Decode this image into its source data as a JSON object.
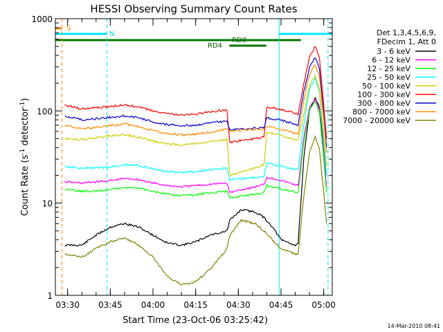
{
  "chart_data": {
    "type": "line",
    "title": "HESSI Observing Summary Count Rates",
    "xlabel": "Start Time (23-Oct-06 03:25:42)",
    "ylabel_main": "Count Rate (s",
    "ylabel_sup1": "-1",
    "ylabel_mid": " detector",
    "ylabel_sup2": "-1",
    "ylabel_end": ")",
    "y_scale": "log",
    "ylim": [
      1,
      1000
    ],
    "xlim": [
      "03:25:42",
      "05:03:00"
    ],
    "x_ticks": [
      "03:30",
      "03:45",
      "04:00",
      "04:15",
      "04:30",
      "04:45",
      "05:00"
    ],
    "y_ticks": [
      "1",
      "10",
      "100",
      "1000"
    ],
    "footer_timestamp": "14-Mar-2010 08:41",
    "legend_header": [
      "Det 1,3,4,5,6,9,",
      "FDecim 1, Att 0"
    ],
    "legend_placement": "right",
    "flag_labels": {
      "saa": "S",
      "night": "N",
      "rd0": "RD0",
      "rd4": "RD4"
    },
    "flag_intervals": {
      "saa": {
        "color": "#ff8000",
        "ranges": [
          [
            "03:25:42",
            "03:28:00"
          ]
        ]
      },
      "night": {
        "color": "#00e5ff",
        "ranges": [
          [
            "03:25:42",
            "03:43:50"
          ],
          [
            "04:44:20",
            "05:03:00"
          ]
        ]
      },
      "rd0": {
        "color": "#007700",
        "ranges": [
          [
            "03:25:42",
            "04:52:00"
          ]
        ]
      },
      "rd4": {
        "color": "#007700",
        "ranges": [
          [
            "04:26:50",
            "04:39:50"
          ]
        ]
      }
    },
    "vertical_markers": [
      {
        "time": "03:25:42",
        "color": "#00e5ff",
        "style": "solid"
      },
      {
        "time": "03:28:00",
        "color": "#ff8000",
        "style": "dashed"
      },
      {
        "time": "03:43:50",
        "color": "#00e5ff",
        "style": "dashed"
      },
      {
        "time": "04:44:20",
        "color": "#00e5ff",
        "style": "solid"
      },
      {
        "time": "05:01:30",
        "color": "#00e5ff",
        "style": "dashed"
      }
    ],
    "series": [
      {
        "name": "3 - 6 keV",
        "color": "#000000",
        "points": [
          [
            "03:29:00",
            "3.5"
          ],
          [
            "03:35:00",
            "3.5"
          ],
          [
            "03:40:00",
            "4.5"
          ],
          [
            "03:45:00",
            "5.5"
          ],
          [
            "03:50:00",
            "6"
          ],
          [
            "03:55:00",
            "5.5"
          ],
          [
            "04:00:00",
            "4.5"
          ],
          [
            "04:05:00",
            "3.7"
          ],
          [
            "04:10:00",
            "3.5"
          ],
          [
            "04:15:00",
            "3.8"
          ],
          [
            "04:20:00",
            "4.5"
          ],
          [
            "04:26:00",
            "5"
          ],
          [
            "04:27:00",
            "6.5"
          ],
          [
            "04:31:00",
            "8.5"
          ],
          [
            "04:36:00",
            "8"
          ],
          [
            "04:39:00",
            "7"
          ],
          [
            "04:42:00",
            "5.5"
          ],
          [
            "04:45:00",
            "4"
          ],
          [
            "04:50:00",
            "3.5"
          ],
          [
            "04:51:00",
            "3.7"
          ],
          [
            "04:53:00",
            "30"
          ],
          [
            "04:55:00",
            "100"
          ],
          [
            "04:57:00",
            "140"
          ],
          [
            "04:58:30",
            "110"
          ],
          [
            "05:00:00",
            "40"
          ],
          [
            "05:01:00",
            "20"
          ]
        ]
      },
      {
        "name": "6 - 12 keV",
        "color": "#ff00ff",
        "points": [
          [
            "03:29:00",
            "17"
          ],
          [
            "03:35:00",
            "16.5"
          ],
          [
            "03:40:00",
            "17"
          ],
          [
            "03:45:00",
            "17.5"
          ],
          [
            "03:50:00",
            "18.5"
          ],
          [
            "03:55:00",
            "18"
          ],
          [
            "04:00:00",
            "16.5"
          ],
          [
            "04:05:00",
            "15.5"
          ],
          [
            "04:10:00",
            "15"
          ],
          [
            "04:15:00",
            "15.5"
          ],
          [
            "04:20:00",
            "16"
          ],
          [
            "04:26:00",
            "16.5"
          ],
          [
            "04:27:00",
            "13"
          ],
          [
            "04:31:00",
            "14"
          ],
          [
            "04:36:00",
            "15"
          ],
          [
            "04:39:00",
            "16"
          ],
          [
            "04:40:00",
            "19"
          ],
          [
            "04:44:00",
            "18"
          ],
          [
            "04:48:00",
            "16.5"
          ],
          [
            "04:51:00",
            "15.5"
          ],
          [
            "04:53:00",
            "50"
          ],
          [
            "04:55:00",
            "110"
          ],
          [
            "04:57:00",
            "135"
          ],
          [
            "04:58:30",
            "100"
          ],
          [
            "05:00:00",
            "35"
          ],
          [
            "05:01:00",
            "15"
          ]
        ]
      },
      {
        "name": "12 - 25 keV",
        "color": "#00ff00",
        "points": [
          [
            "03:29:00",
            "14"
          ],
          [
            "03:35:00",
            "13.5"
          ],
          [
            "03:40:00",
            "13.5"
          ],
          [
            "03:45:00",
            "14"
          ],
          [
            "03:50:00",
            "15"
          ],
          [
            "03:55:00",
            "14.5"
          ],
          [
            "04:00:00",
            "13.5"
          ],
          [
            "04:05:00",
            "12.5"
          ],
          [
            "04:10:00",
            "12"
          ],
          [
            "04:15:00",
            "12.3"
          ],
          [
            "04:20:00",
            "13"
          ],
          [
            "04:26:00",
            "13.5"
          ],
          [
            "04:27:00",
            "11.5"
          ],
          [
            "04:31:00",
            "12"
          ],
          [
            "04:36:00",
            "12.5"
          ],
          [
            "04:39:00",
            "13"
          ],
          [
            "04:40:00",
            "15.5"
          ],
          [
            "04:44:00",
            "14.5"
          ],
          [
            "04:48:00",
            "13.5"
          ],
          [
            "04:51:00",
            "13"
          ],
          [
            "04:53:00",
            "45"
          ],
          [
            "04:55:00",
            "100"
          ],
          [
            "04:57:00",
            "130"
          ],
          [
            "04:58:30",
            "95"
          ],
          [
            "05:00:00",
            "30"
          ],
          [
            "05:01:00",
            "13"
          ]
        ]
      },
      {
        "name": "25 - 50 keV",
        "color": "#00ffff",
        "points": [
          [
            "03:29:00",
            "25"
          ],
          [
            "03:35:00",
            "24"
          ],
          [
            "03:40:00",
            "24"
          ],
          [
            "03:45:00",
            "24.5"
          ],
          [
            "03:50:00",
            "26"
          ],
          [
            "03:55:00",
            "25.5"
          ],
          [
            "04:00:00",
            "23.5"
          ],
          [
            "04:05:00",
            "22"
          ],
          [
            "04:10:00",
            "21.5"
          ],
          [
            "04:15:00",
            "22"
          ],
          [
            "04:20:00",
            "23"
          ],
          [
            "04:26:00",
            "24"
          ],
          [
            "04:27:00",
            "18"
          ],
          [
            "04:31:00",
            "18.5"
          ],
          [
            "04:36:00",
            "19"
          ],
          [
            "04:39:00",
            "19.5"
          ],
          [
            "04:40:00",
            "27"
          ],
          [
            "04:44:00",
            "25.5"
          ],
          [
            "04:48:00",
            "24"
          ],
          [
            "04:51:00",
            "23"
          ],
          [
            "04:53:00",
            "70"
          ],
          [
            "04:55:00",
            "170"
          ],
          [
            "04:57:00",
            "225"
          ],
          [
            "04:58:30",
            "160"
          ],
          [
            "05:00:00",
            "45"
          ],
          [
            "05:01:00",
            "20"
          ]
        ]
      },
      {
        "name": "50 - 100 keV",
        "color": "#cccc00",
        "points": [
          [
            "03:29:00",
            "50"
          ],
          [
            "03:35:00",
            "49"
          ],
          [
            "03:40:00",
            "51"
          ],
          [
            "03:45:00",
            "54"
          ],
          [
            "03:50:00",
            "55"
          ],
          [
            "03:55:00",
            "52"
          ],
          [
            "04:00:00",
            "47"
          ],
          [
            "04:05:00",
            "44"
          ],
          [
            "04:10:00",
            "43"
          ],
          [
            "04:15:00",
            "44"
          ],
          [
            "04:20:00",
            "46"
          ],
          [
            "04:26:00",
            "49"
          ],
          [
            "04:27:00",
            "20"
          ],
          [
            "04:31:00",
            "22"
          ],
          [
            "04:36:00",
            "24"
          ],
          [
            "04:39:00",
            "26"
          ],
          [
            "04:40:00",
            "58"
          ],
          [
            "04:44:00",
            "55"
          ],
          [
            "04:48:00",
            "51"
          ],
          [
            "04:51:00",
            "48"
          ],
          [
            "04:53:00",
            "90"
          ],
          [
            "04:55:00",
            "190"
          ],
          [
            "04:57:00",
            "240"
          ],
          [
            "04:58:30",
            "170"
          ],
          [
            "05:00:00",
            "55"
          ],
          [
            "05:01:00",
            "25"
          ]
        ]
      },
      {
        "name": "100 - 300 keV",
        "color": "#ff0000",
        "points": [
          [
            "03:29:00",
            "115"
          ],
          [
            "03:35:00",
            "105"
          ],
          [
            "03:40:00",
            "108"
          ],
          [
            "03:45:00",
            "112"
          ],
          [
            "03:50:00",
            "116"
          ],
          [
            "03:55:00",
            "110"
          ],
          [
            "04:00:00",
            "100"
          ],
          [
            "04:05:00",
            "93"
          ],
          [
            "04:10:00",
            "90"
          ],
          [
            "04:15:00",
            "92"
          ],
          [
            "04:20:00",
            "98"
          ],
          [
            "04:26:00",
            "103"
          ],
          [
            "04:27:00",
            "45"
          ],
          [
            "04:31:00",
            "48"
          ],
          [
            "04:36:00",
            "50"
          ],
          [
            "04:39:00",
            "52"
          ],
          [
            "04:40:00",
            "110"
          ],
          [
            "04:44:00",
            "105"
          ],
          [
            "04:48:00",
            "98"
          ],
          [
            "04:51:00",
            "92"
          ],
          [
            "04:53:00",
            "200"
          ],
          [
            "04:55:00",
            "380"
          ],
          [
            "04:57:00",
            "500"
          ],
          [
            "04:58:30",
            "380"
          ],
          [
            "05:00:00",
            "120"
          ],
          [
            "05:01:00",
            "50"
          ]
        ]
      },
      {
        "name": "300 - 800 keV",
        "color": "#0000cc",
        "points": [
          [
            "03:29:00",
            "88"
          ],
          [
            "03:35:00",
            "80"
          ],
          [
            "03:40:00",
            "82"
          ],
          [
            "03:45:00",
            "85"
          ],
          [
            "03:50:00",
            "88"
          ],
          [
            "03:55:00",
            "84"
          ],
          [
            "04:00:00",
            "76"
          ],
          [
            "04:05:00",
            "71"
          ],
          [
            "04:10:00",
            "69"
          ],
          [
            "04:15:00",
            "70"
          ],
          [
            "04:20:00",
            "74"
          ],
          [
            "04:26:00",
            "78"
          ],
          [
            "04:27:00",
            "62"
          ],
          [
            "04:31:00",
            "64"
          ],
          [
            "04:36:00",
            "65"
          ],
          [
            "04:39:00",
            "66"
          ],
          [
            "04:40:00",
            "84"
          ],
          [
            "04:44:00",
            "80"
          ],
          [
            "04:48:00",
            "75"
          ],
          [
            "04:51:00",
            "70"
          ],
          [
            "04:53:00",
            "160"
          ],
          [
            "04:55:00",
            "300"
          ],
          [
            "04:57:00",
            "380"
          ],
          [
            "04:58:30",
            "290"
          ],
          [
            "05:00:00",
            "95"
          ],
          [
            "05:01:00",
            "40"
          ]
        ]
      },
      {
        "name": "800 - 7000 keV",
        "color": "#ff8800",
        "points": [
          [
            "03:29:00",
            "70"
          ],
          [
            "03:35:00",
            "64"
          ],
          [
            "03:40:00",
            "66"
          ],
          [
            "03:45:00",
            "69"
          ],
          [
            "03:50:00",
            "72"
          ],
          [
            "03:55:00",
            "68"
          ],
          [
            "04:00:00",
            "61"
          ],
          [
            "04:05:00",
            "57"
          ],
          [
            "04:10:00",
            "55"
          ],
          [
            "04:15:00",
            "56"
          ],
          [
            "04:20:00",
            "59"
          ],
          [
            "04:26:00",
            "63"
          ],
          [
            "04:27:00",
            "60"
          ],
          [
            "04:31:00",
            "62"
          ],
          [
            "04:36:00",
            "63"
          ],
          [
            "04:39:00",
            "64"
          ],
          [
            "04:40:00",
            "68"
          ],
          [
            "04:44:00",
            "64"
          ],
          [
            "04:48:00",
            "60"
          ],
          [
            "04:51:00",
            "56"
          ],
          [
            "04:53:00",
            "130"
          ],
          [
            "04:55:00",
            "250"
          ],
          [
            "04:57:00",
            "320"
          ],
          [
            "04:58:30",
            "240"
          ],
          [
            "05:00:00",
            "80"
          ],
          [
            "05:01:00",
            "35"
          ]
        ]
      },
      {
        "name": "7000 - 20000 keV",
        "color": "#808000",
        "points": [
          [
            "03:29:00",
            "2.8"
          ],
          [
            "03:35:00",
            "2.6"
          ],
          [
            "03:40:00",
            "3.2"
          ],
          [
            "03:45:00",
            "3.8"
          ],
          [
            "03:50:00",
            "4.2"
          ],
          [
            "03:55:00",
            "3.5"
          ],
          [
            "04:00:00",
            "2.6"
          ],
          [
            "04:05:00",
            "1.6"
          ],
          [
            "04:10:00",
            "1.3"
          ],
          [
            "04:15:00",
            "1.4"
          ],
          [
            "04:20:00",
            "1.9"
          ],
          [
            "04:26:00",
            "3.2"
          ],
          [
            "04:27:00",
            "4.5"
          ],
          [
            "04:31:00",
            "6.5"
          ],
          [
            "04:36:00",
            "6"
          ],
          [
            "04:39:00",
            "5"
          ],
          [
            "04:42:00",
            "4"
          ],
          [
            "04:45:00",
            "3.2"
          ],
          [
            "04:50:00",
            "2.8"
          ],
          [
            "04:51:00",
            "2.8"
          ],
          [
            "04:53:00",
            "12"
          ],
          [
            "04:55:00",
            "35"
          ],
          [
            "04:57:00",
            "52"
          ],
          [
            "04:58:30",
            "38"
          ],
          [
            "05:00:00",
            "13"
          ],
          [
            "05:01:00",
            "6"
          ]
        ]
      }
    ]
  }
}
